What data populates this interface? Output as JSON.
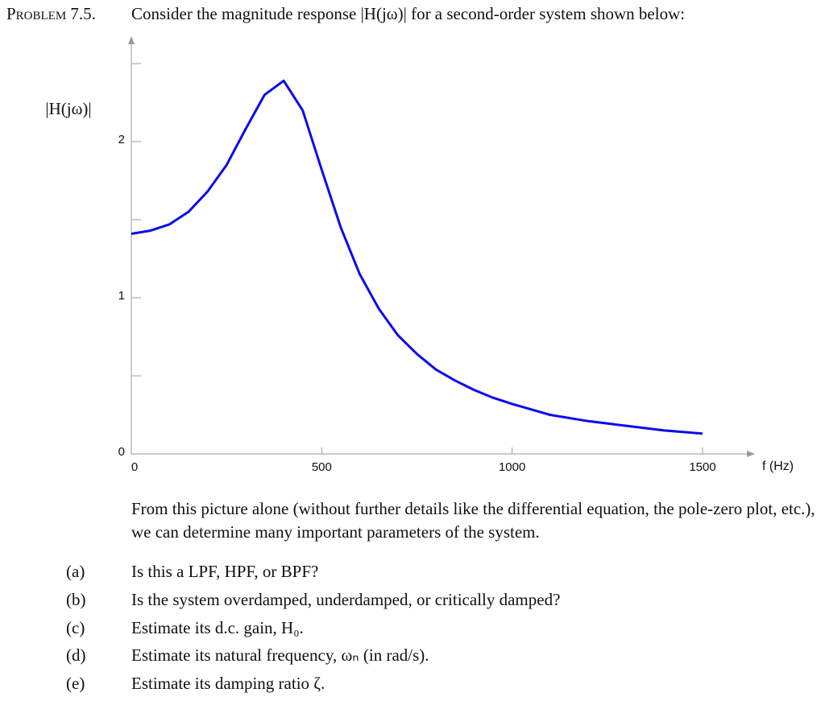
{
  "header": {
    "label": "Problem 7.5.",
    "text": "Consider the magnitude response |H(jω)| for a second-order system shown below:"
  },
  "chart_data": {
    "type": "line",
    "ylabel": "|H(jω)|",
    "xlabel": "f (Hz)",
    "color": "#0a0af0",
    "x": [
      0,
      50,
      100,
      150,
      200,
      250,
      300,
      350,
      400,
      450,
      500,
      550,
      600,
      650,
      700,
      750,
      800,
      850,
      900,
      950,
      1000,
      1100,
      1200,
      1300,
      1400,
      1500
    ],
    "values": [
      1.41,
      1.43,
      1.47,
      1.55,
      1.68,
      1.85,
      2.08,
      2.3,
      2.39,
      2.2,
      1.82,
      1.45,
      1.15,
      0.93,
      0.76,
      0.64,
      0.54,
      0.47,
      0.41,
      0.36,
      0.32,
      0.25,
      0.21,
      0.18,
      0.15,
      0.13
    ],
    "xlim": [
      0,
      1620
    ],
    "ylim": [
      0,
      2.68
    ],
    "xticks": [
      0,
      500,
      1000,
      1500
    ],
    "yticks": [
      0,
      1,
      2
    ],
    "yminorticks": [
      0.5,
      1.5,
      2.5
    ]
  },
  "intro": "From this picture alone (without further details like the differential equation, the pole-zero plot, etc.), we can determine many important parameters of the system.",
  "questions": [
    {
      "label": "(a)",
      "text": "Is this a LPF, HPF, or BPF?"
    },
    {
      "label": "(b)",
      "text": "Is the system overdamped, underdamped, or critically damped?"
    },
    {
      "label": "(c)",
      "text": "Estimate its d.c. gain, H₀."
    },
    {
      "label": "(d)",
      "text": "Estimate its natural frequency, ωₙ (in rad/s)."
    },
    {
      "label": "(e)",
      "text": "Estimate its damping ratio ζ."
    }
  ]
}
